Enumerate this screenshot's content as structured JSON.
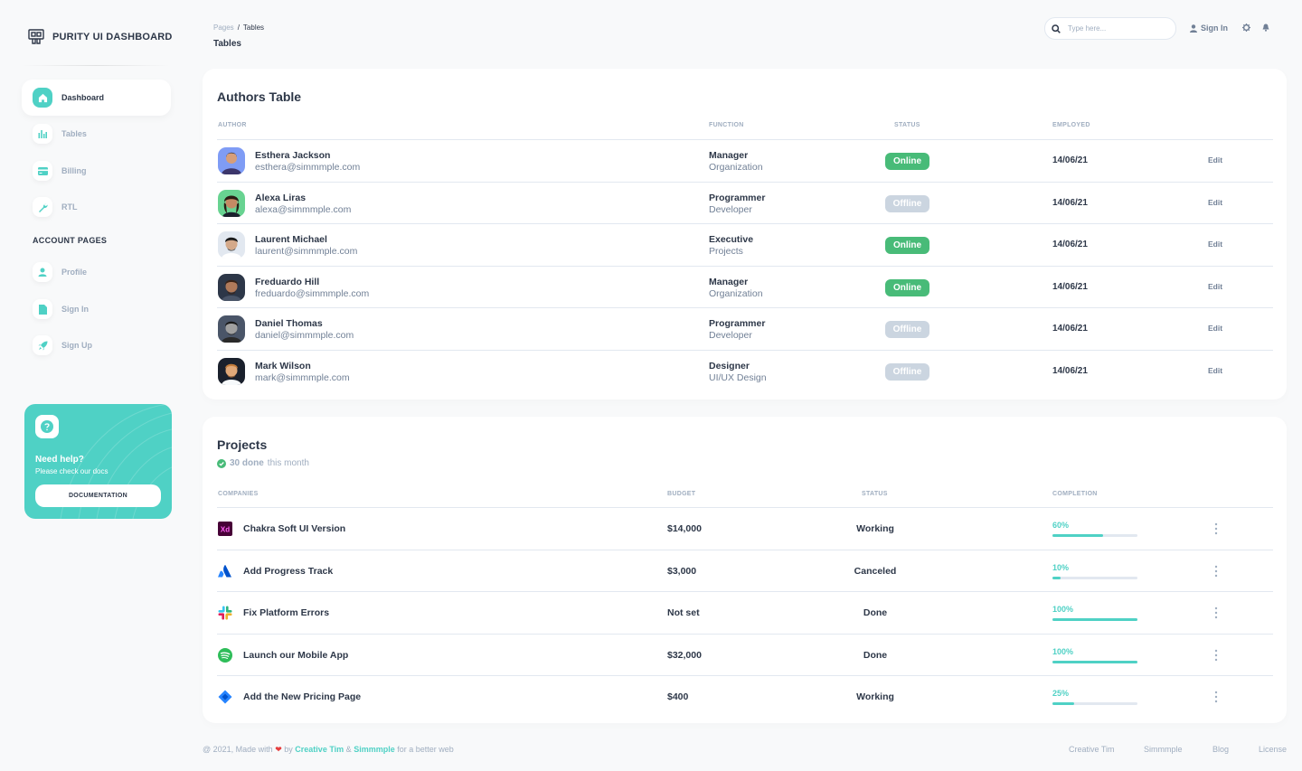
{
  "brand": {
    "title": "PURITY UI DASHBOARD"
  },
  "sidebar": {
    "items": [
      {
        "label": "Dashboard",
        "icon": "home-icon"
      },
      {
        "label": "Tables",
        "icon": "stats-icon"
      },
      {
        "label": "Billing",
        "icon": "credit-card-icon"
      },
      {
        "label": "RTL",
        "icon": "wrench-icon"
      }
    ],
    "section_title": "ACCOUNT PAGES",
    "account_items": [
      {
        "label": "Profile",
        "icon": "person-icon"
      },
      {
        "label": "Sign In",
        "icon": "document-icon"
      },
      {
        "label": "Sign Up",
        "icon": "rocket-icon"
      }
    ],
    "help": {
      "title": "Need help?",
      "subtitle": "Please check our docs",
      "button": "DOCUMENTATION"
    }
  },
  "header": {
    "breadcrumb_root": "Pages",
    "breadcrumb_sep": "/",
    "breadcrumb_current": "Tables",
    "title": "Tables",
    "search_placeholder": "Type here...",
    "signin_label": "Sign In"
  },
  "authors": {
    "title": "Authors Table",
    "columns": [
      "AUTHOR",
      "FUNCTION",
      "STATUS",
      "EMPLOYED"
    ],
    "edit_label": "Edit",
    "rows": [
      {
        "name": "Esthera Jackson",
        "email": "esthera@simmmple.com",
        "function": "Manager",
        "dept": "Organization",
        "status": "Online",
        "employed": "14/06/21"
      },
      {
        "name": "Alexa Liras",
        "email": "alexa@simmmple.com",
        "function": "Programmer",
        "dept": "Developer",
        "status": "Offline",
        "employed": "14/06/21"
      },
      {
        "name": "Laurent Michael",
        "email": "laurent@simmmple.com",
        "function": "Executive",
        "dept": "Projects",
        "status": "Online",
        "employed": "14/06/21"
      },
      {
        "name": "Freduardo Hill",
        "email": "freduardo@simmmple.com",
        "function": "Manager",
        "dept": "Organization",
        "status": "Online",
        "employed": "14/06/21"
      },
      {
        "name": "Daniel Thomas",
        "email": "daniel@simmmple.com",
        "function": "Programmer",
        "dept": "Developer",
        "status": "Offline",
        "employed": "14/06/21"
      },
      {
        "name": "Mark Wilson",
        "email": "mark@simmmple.com",
        "function": "Designer",
        "dept": "UI/UX Design",
        "status": "Offline",
        "employed": "14/06/21"
      }
    ]
  },
  "projects": {
    "title": "Projects",
    "done_count": "30 done",
    "done_suffix": "this month",
    "columns": [
      "COMPANIES",
      "BUDGET",
      "STATUS",
      "COMPLETION"
    ],
    "rows": [
      {
        "name": "Chakra Soft UI Version",
        "budget": "$14,000",
        "status": "Working",
        "completion": "60%",
        "fraction": 0.6,
        "logo": "xd-logo-icon"
      },
      {
        "name": "Add Progress Track",
        "budget": "$3,000",
        "status": "Canceled",
        "completion": "10%",
        "fraction": 0.1,
        "logo": "atlassian-logo-icon"
      },
      {
        "name": "Fix Platform Errors",
        "budget": "Not set",
        "status": "Done",
        "completion": "100%",
        "fraction": 1.0,
        "logo": "slack-logo-icon"
      },
      {
        "name": "Launch our Mobile App",
        "budget": "$32,000",
        "status": "Done",
        "completion": "100%",
        "fraction": 1.0,
        "logo": "spotify-logo-icon"
      },
      {
        "name": "Add the New Pricing Page",
        "budget": "$400",
        "status": "Working",
        "completion": "25%",
        "fraction": 0.25,
        "logo": "jira-logo-icon"
      }
    ]
  },
  "footer": {
    "prefix": "@ 2021, Made with",
    "by": "by",
    "author1": "Creative Tim",
    "amp": "&",
    "author2": "Simmmple",
    "suffix": "for a better web",
    "links": [
      "Creative Tim",
      "Simmmple",
      "Blog",
      "License"
    ]
  },
  "colors": {
    "accent": "#4fd1c5",
    "online": "#48bb78",
    "offline": "#cbd5e0"
  }
}
